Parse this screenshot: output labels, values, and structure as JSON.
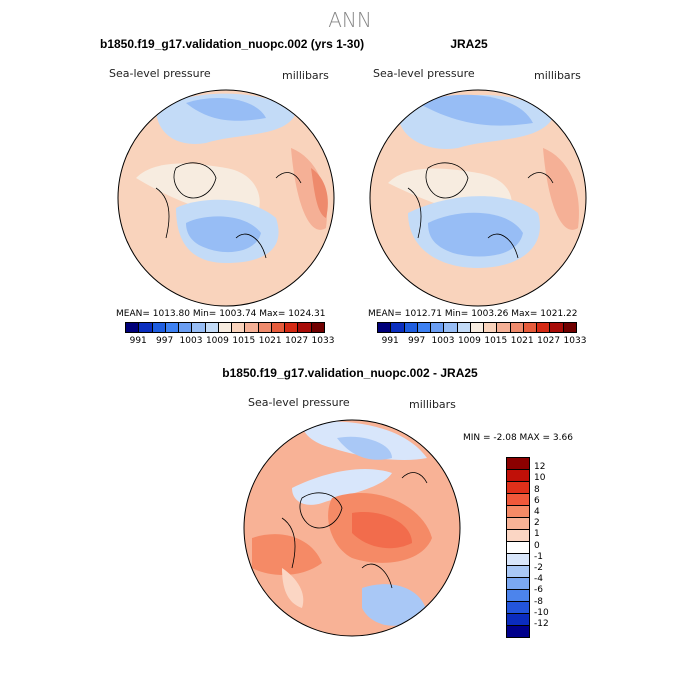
{
  "main_title": "ANN",
  "panels": [
    {
      "title": "b1850.f19_g17.validation_nuopc.002 (yrs 1-30)",
      "field_label": "Sea-level pressure",
      "units": "millibars",
      "stats": "MEAN= 1013.80   Min= 1003.74   Max= 1024.31",
      "colorbar": {
        "colors": [
          "#00007a",
          "#0b2fbf",
          "#1f5ee0",
          "#3e81f2",
          "#6b9ef2",
          "#97bdf5",
          "#c3dbf7",
          "#f7ece0",
          "#f9d3bc",
          "#f5b096",
          "#ee8a6c",
          "#e65c3c",
          "#d42a14",
          "#a80c08",
          "#700000"
        ],
        "labels": [
          "991",
          "997",
          "1003",
          "1009",
          "1015",
          "1021",
          "1027",
          "1033"
        ]
      }
    },
    {
      "title": "JRA25",
      "field_label": "Sea-level pressure",
      "units": "millibars",
      "stats": "MEAN= 1012.71   Min= 1003.26   Max= 1021.22",
      "colorbar": {
        "colors": [
          "#00007a",
          "#0b2fbf",
          "#1f5ee0",
          "#3e81f2",
          "#6b9ef2",
          "#97bdf5",
          "#c3dbf7",
          "#f7ece0",
          "#f9d3bc",
          "#f5b096",
          "#ee8a6c",
          "#e65c3c",
          "#d42a14",
          "#a80c08",
          "#700000"
        ],
        "labels": [
          "991",
          "997",
          "1003",
          "1009",
          "1015",
          "1021",
          "1027",
          "1033"
        ]
      }
    },
    {
      "title": "b1850.f19_g17.validation_nuopc.002 - JRA25",
      "field_label": "Sea-level pressure",
      "units": "millibars",
      "stats": "MIN =   -2.08  MAX =    3.66",
      "colorbar": {
        "colors": [
          "#8b0000",
          "#c01008",
          "#e0301a",
          "#f0583a",
          "#f58a66",
          "#f8b296",
          "#fbd6c4",
          "#ffffff",
          "#d8e6fb",
          "#a9c8f6",
          "#7ba8f2",
          "#4c84ec",
          "#2355dc",
          "#0b2cbe",
          "#00008b"
        ],
        "labels": [
          "12",
          "10",
          "8",
          "6",
          "4",
          "2",
          "1",
          "0",
          "-1",
          "-2",
          "-4",
          "-6",
          "-8",
          "-10",
          "-12"
        ]
      }
    }
  ]
}
